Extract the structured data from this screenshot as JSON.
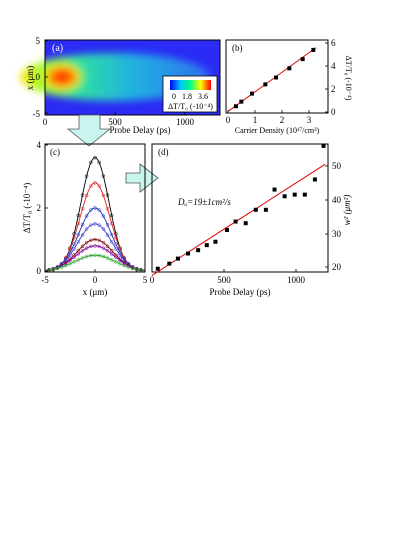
{
  "figure": {
    "panel_a": {
      "label": "(a)",
      "xlabel": "Probe Delay (ps)",
      "ylabel": "x (μm)",
      "xticks": [
        "0",
        "500",
        "1000"
      ],
      "yticks": [
        "5",
        "0",
        "-5"
      ],
      "colorbar_ticks": [
        "0",
        "1.8",
        "3.6"
      ],
      "colorbar_label": "ΔT/T₀ (-10⁻⁴)"
    },
    "panel_b": {
      "label": "(b)",
      "xlabel": "Carrier Density (10¹⁷/cm³)",
      "ylabel": "ΔT/T₀ (-10⁻⁴)",
      "xticks": [
        "0",
        "1",
        "2",
        "3"
      ],
      "yticks": [
        "0",
        "2",
        "4",
        "6"
      ]
    },
    "panel_c": {
      "label": "(c)",
      "xlabel": "x (μm)",
      "ylabel": "ΔT/T₀ (-10⁻⁴)",
      "xticks": [
        "-5",
        "0",
        "5"
      ],
      "yticks": [
        "0",
        "2",
        "4"
      ]
    },
    "panel_d": {
      "label": "(d)",
      "xlabel": "Probe Delay (ps)",
      "ylabel": "w² (μm²)",
      "xticks": [
        "0",
        "500",
        "1000"
      ],
      "yticks": [
        "20",
        "30",
        "40",
        "50"
      ],
      "annotation": "Dₐ=19±1cm²/s"
    }
  },
  "chart_data": [
    {
      "type": "heatmap",
      "panel": "a",
      "xlabel": "Probe Delay (ps)",
      "ylabel": "x (μm)",
      "xlim": [
        0,
        1250
      ],
      "ylim": [
        -5,
        5
      ],
      "colorbar": {
        "range": [
          0,
          3.6
        ],
        "ticks": [
          0,
          1.8,
          3.6
        ],
        "label": "ΔT/T₀ (-10⁻⁴)"
      },
      "peak": {
        "x": 100,
        "y": 0,
        "value": 3.6
      }
    },
    {
      "type": "scatter",
      "panel": "b",
      "xlabel": "Carrier Density (10¹⁷/cm³)",
      "ylabel": "ΔT/T₀ (-10⁻⁴)",
      "xlim": [
        0,
        3.5
      ],
      "ylim": [
        0,
        6.2
      ],
      "x": [
        0.3,
        0.5,
        0.9,
        1.4,
        1.8,
        2.3,
        2.8,
        3.2
      ],
      "y": [
        0.5,
        0.9,
        1.6,
        2.4,
        3.0,
        3.8,
        4.6,
        5.4
      ],
      "fit": {
        "x": [
          0,
          3.3
        ],
        "y": [
          0.05,
          5.6
        ]
      }
    },
    {
      "type": "line",
      "panel": "c",
      "xlabel": "x (μm)",
      "ylabel": "ΔT/T₀ (-10⁻⁴)",
      "xlim": [
        -5,
        5
      ],
      "ylim": [
        0,
        4
      ],
      "series": [
        {
          "amplitude": 3.6,
          "width": 1.4,
          "color": "#000000"
        },
        {
          "amplitude": 2.8,
          "width": 1.5,
          "color": "#e02020"
        },
        {
          "amplitude": 2.0,
          "width": 1.6,
          "color": "#2030c0"
        },
        {
          "amplitude": 1.5,
          "width": 1.7,
          "color": "#4040d0"
        },
        {
          "amplitude": 1.0,
          "width": 1.8,
          "color": "#800000"
        },
        {
          "amplitude": 0.8,
          "width": 1.9,
          "color": "#8000a0"
        },
        {
          "amplitude": 0.5,
          "width": 2.0,
          "color": "#20a020"
        }
      ]
    },
    {
      "type": "scatter",
      "panel": "d",
      "xlabel": "Probe Delay (ps)",
      "ylabel": "w² (μm²)",
      "xlim": [
        0,
        1200
      ],
      "ylim": [
        17.5,
        57
      ],
      "x": [
        40,
        120,
        180,
        250,
        320,
        380,
        440,
        520,
        580,
        650,
        720,
        790,
        850,
        920,
        990,
        1060,
        1130,
        1190
      ],
      "y": [
        19.5,
        21,
        22.5,
        24,
        25,
        26.5,
        27.5,
        31,
        33.5,
        33,
        37,
        37,
        43,
        41,
        41.5,
        41.5,
        46,
        56
      ],
      "fit": {
        "x": [
          0,
          1200
        ],
        "y": [
          17.5,
          50.5
        ]
      }
    }
  ]
}
